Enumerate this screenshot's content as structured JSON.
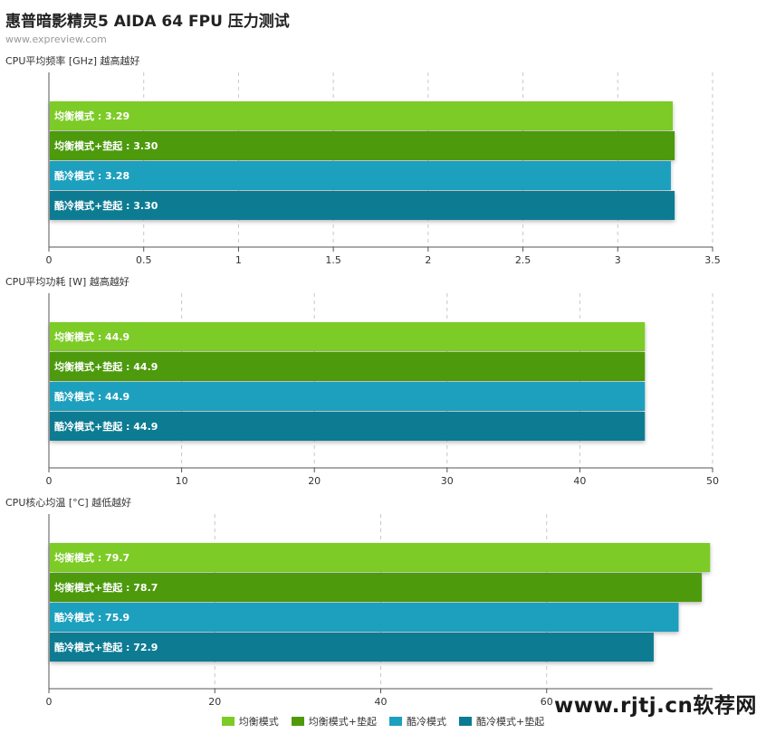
{
  "header": {
    "title": "惠普暗影精灵5 AIDA 64 FPU 压力测试",
    "subtitle": "www.expreview.com"
  },
  "watermark": "www.rjtj.cn软荐网",
  "legend": [
    {
      "label": "均衡模式",
      "color": "#7dcb25"
    },
    {
      "label": "均衡模式+垫起",
      "color": "#4e9a09"
    },
    {
      "label": "酷冷模式",
      "color": "#1ba0bd"
    },
    {
      "label": "酷冷模式+垫起",
      "color": "#077c93"
    }
  ],
  "chart_data": [
    {
      "type": "bar",
      "orientation": "horizontal",
      "title": "CPU平均频率 [GHz] 越高越好",
      "categories": [
        "均衡模式",
        "均衡模式+垫起",
        "酷冷模式",
        "酷冷模式+垫起"
      ],
      "values": [
        3.29,
        3.3,
        3.28,
        3.3
      ],
      "value_labels": [
        "均衡模式 : 3.29",
        "均衡模式+垫起 : 3.30",
        "酷冷模式 : 3.28",
        "酷冷模式+垫起 : 3.30"
      ],
      "xlim": [
        0,
        3.5
      ],
      "ticks": [
        0,
        0.5,
        1,
        1.5,
        2,
        2.5,
        3,
        3.5
      ],
      "tick_labels": [
        "0",
        "0.5",
        "1",
        "1.5",
        "2",
        "2.5",
        "3",
        "3.5"
      ],
      "grid": true
    },
    {
      "type": "bar",
      "orientation": "horizontal",
      "title": "CPU平均功耗 [W] 越高越好",
      "categories": [
        "均衡模式",
        "均衡模式+垫起",
        "酷冷模式",
        "酷冷模式+垫起"
      ],
      "values": [
        44.9,
        44.9,
        44.9,
        44.9
      ],
      "value_labels": [
        "均衡模式 : 44.9",
        "均衡模式+垫起 : 44.9",
        "酷冷模式 : 44.9",
        "酷冷模式+垫起 : 44.9"
      ],
      "xlim": [
        0,
        50
      ],
      "ticks": [
        0,
        10,
        20,
        30,
        40,
        50
      ],
      "tick_labels": [
        "0",
        "10",
        "20",
        "30",
        "40",
        "50"
      ],
      "grid": true
    },
    {
      "type": "bar",
      "orientation": "horizontal",
      "title": "CPU核心均温 [°C] 越低越好",
      "categories": [
        "均衡模式",
        "均衡模式+垫起",
        "酷冷模式",
        "酷冷模式+垫起"
      ],
      "values": [
        79.7,
        78.7,
        75.9,
        72.9
      ],
      "value_labels": [
        "均衡模式 : 79.7",
        "均衡模式+垫起 : 78.7",
        "酷冷模式 : 75.9",
        "酷冷模式+垫起 : 72.9"
      ],
      "xlim": [
        0,
        80
      ],
      "ticks": [
        0,
        20,
        40,
        60
      ],
      "tick_labels": [
        "0",
        "20",
        "40",
        "60"
      ],
      "grid": true
    }
  ]
}
